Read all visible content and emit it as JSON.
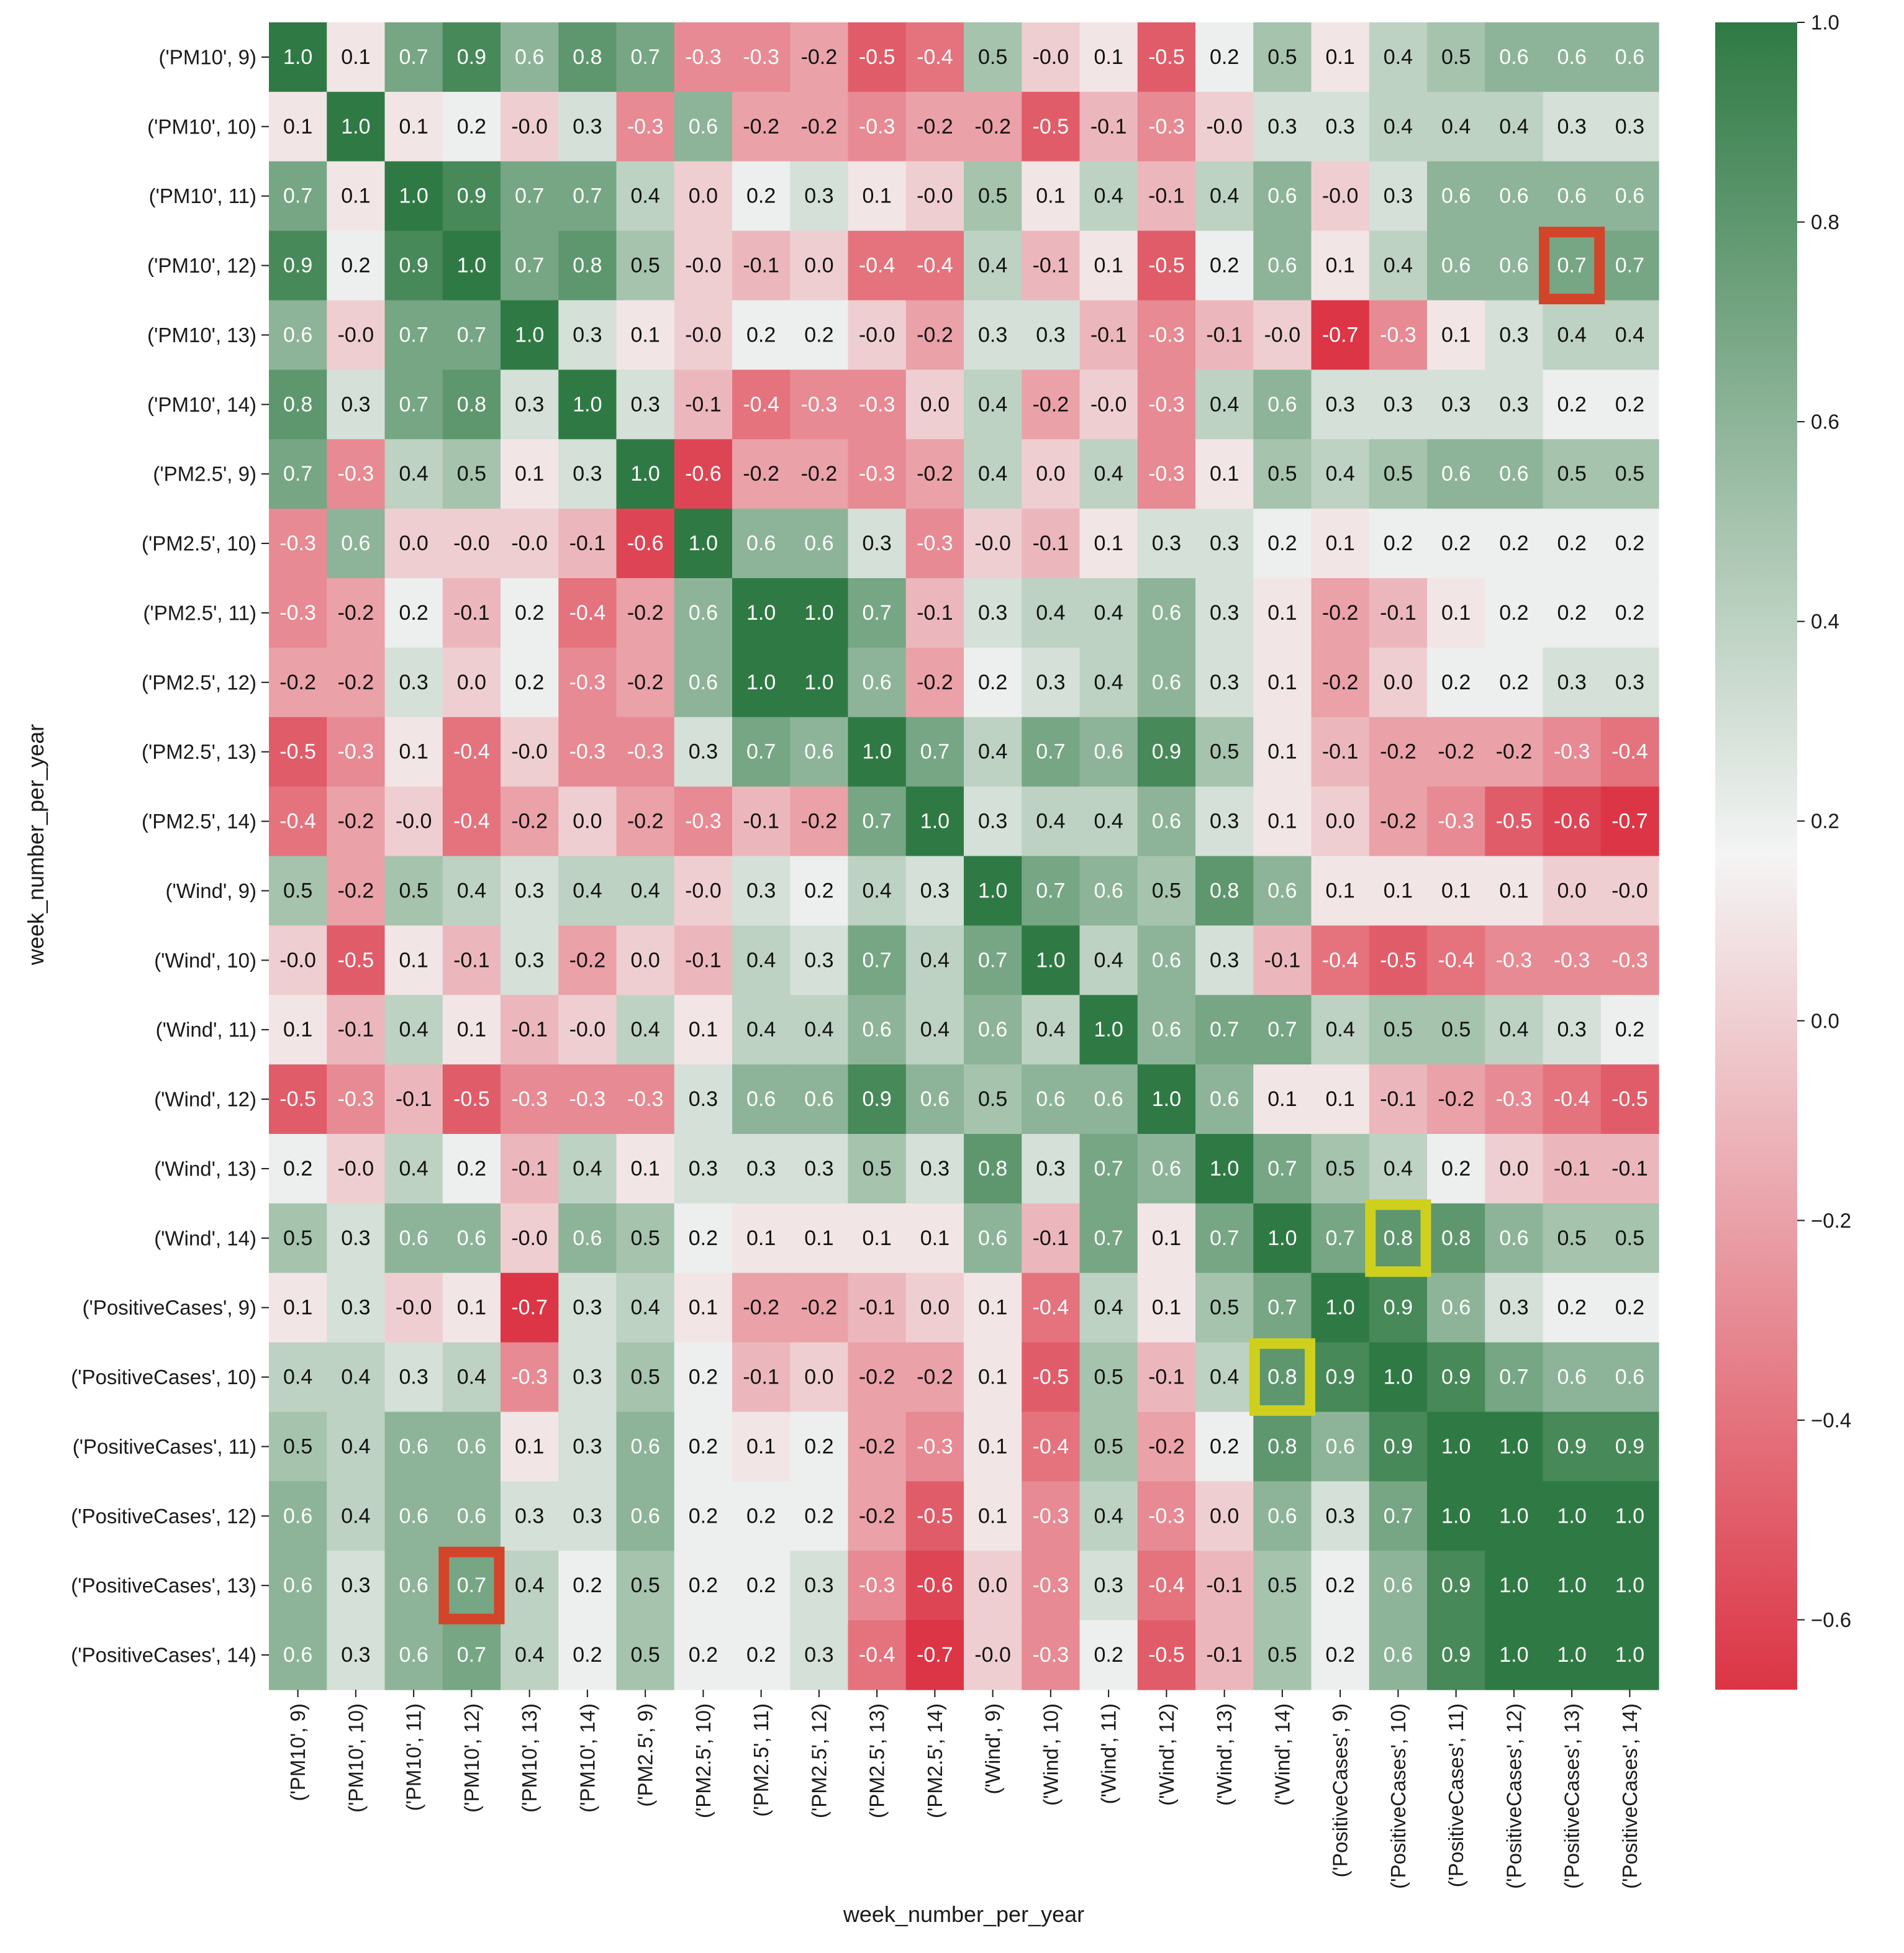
{
  "chart_data": {
    "type": "heatmap",
    "title": "",
    "xlabel": "week_number_per_year",
    "ylabel": "week_number_per_year",
    "labels": [
      "('PM10', 9)",
      "('PM10', 10)",
      "('PM10', 11)",
      "('PM10', 12)",
      "('PM10', 13)",
      "('PM10', 14)",
      "('PM2.5', 9)",
      "('PM2.5', 10)",
      "('PM2.5', 11)",
      "('PM2.5', 12)",
      "('PM2.5', 13)",
      "('PM2.5', 14)",
      "('Wind', 9)",
      "('Wind', 10)",
      "('Wind', 11)",
      "('Wind', 12)",
      "('Wind', 13)",
      "('Wind', 14)",
      "('PositiveCases', 9)",
      "('PositiveCases', 10)",
      "('PositiveCases', 11)",
      "('PositiveCases', 12)",
      "('PositiveCases', 13)",
      "('PositiveCases', 14)"
    ],
    "matrix": [
      [
        "1.0",
        "0.1",
        "0.7",
        "0.9",
        "0.6",
        "0.8",
        "0.7",
        "-0.3",
        "-0.3",
        "-0.2",
        "-0.5",
        "-0.4",
        "0.5",
        "-0.0",
        "0.1",
        "-0.5",
        "0.2",
        "0.5",
        "0.1",
        "0.4",
        "0.5",
        "0.6",
        "0.6",
        "0.6"
      ],
      [
        "0.1",
        "1.0",
        "0.1",
        "0.2",
        "-0.0",
        "0.3",
        "-0.3",
        "0.6",
        "-0.2",
        "-0.2",
        "-0.3",
        "-0.2",
        "-0.2",
        "-0.5",
        "-0.1",
        "-0.3",
        "-0.0",
        "0.3",
        "0.3",
        "0.4",
        "0.4",
        "0.4",
        "0.3",
        "0.3"
      ],
      [
        "0.7",
        "0.1",
        "1.0",
        "0.9",
        "0.7",
        "0.7",
        "0.4",
        "0.0",
        "0.2",
        "0.3",
        "0.1",
        "-0.0",
        "0.5",
        "0.1",
        "0.4",
        "-0.1",
        "0.4",
        "0.6",
        "-0.0",
        "0.3",
        "0.6",
        "0.6",
        "0.6",
        "0.6"
      ],
      [
        "0.9",
        "0.2",
        "0.9",
        "1.0",
        "0.7",
        "0.8",
        "0.5",
        "-0.0",
        "-0.1",
        "0.0",
        "-0.4",
        "-0.4",
        "0.4",
        "-0.1",
        "0.1",
        "-0.5",
        "0.2",
        "0.6",
        "0.1",
        "0.4",
        "0.6",
        "0.6",
        "0.7",
        "0.7"
      ],
      [
        "0.6",
        "-0.0",
        "0.7",
        "0.7",
        "1.0",
        "0.3",
        "0.1",
        "-0.0",
        "0.2",
        "0.2",
        "-0.0",
        "-0.2",
        "0.3",
        "0.3",
        "-0.1",
        "-0.3",
        "-0.1",
        "-0.0",
        "-0.7",
        "-0.3",
        "0.1",
        "0.3",
        "0.4",
        "0.4"
      ],
      [
        "0.8",
        "0.3",
        "0.7",
        "0.8",
        "0.3",
        "1.0",
        "0.3",
        "-0.1",
        "-0.4",
        "-0.3",
        "-0.3",
        "0.0",
        "0.4",
        "-0.2",
        "-0.0",
        "-0.3",
        "0.4",
        "0.6",
        "0.3",
        "0.3",
        "0.3",
        "0.3",
        "0.2",
        "0.2"
      ],
      [
        "0.7",
        "-0.3",
        "0.4",
        "0.5",
        "0.1",
        "0.3",
        "1.0",
        "-0.6",
        "-0.2",
        "-0.2",
        "-0.3",
        "-0.2",
        "0.4",
        "0.0",
        "0.4",
        "-0.3",
        "0.1",
        "0.5",
        "0.4",
        "0.5",
        "0.6",
        "0.6",
        "0.5",
        "0.5"
      ],
      [
        "-0.3",
        "0.6",
        "0.0",
        "-0.0",
        "-0.0",
        "-0.1",
        "-0.6",
        "1.0",
        "0.6",
        "0.6",
        "0.3",
        "-0.3",
        "-0.0",
        "-0.1",
        "0.1",
        "0.3",
        "0.3",
        "0.2",
        "0.1",
        "0.2",
        "0.2",
        "0.2",
        "0.2",
        "0.2"
      ],
      [
        "-0.3",
        "-0.2",
        "0.2",
        "-0.1",
        "0.2",
        "-0.4",
        "-0.2",
        "0.6",
        "1.0",
        "1.0",
        "0.7",
        "-0.1",
        "0.3",
        "0.4",
        "0.4",
        "0.6",
        "0.3",
        "0.1",
        "-0.2",
        "-0.1",
        "0.1",
        "0.2",
        "0.2",
        "0.2"
      ],
      [
        "-0.2",
        "-0.2",
        "0.3",
        "0.0",
        "0.2",
        "-0.3",
        "-0.2",
        "0.6",
        "1.0",
        "1.0",
        "0.6",
        "-0.2",
        "0.2",
        "0.3",
        "0.4",
        "0.6",
        "0.3",
        "0.1",
        "-0.2",
        "0.0",
        "0.2",
        "0.2",
        "0.3",
        "0.3"
      ],
      [
        "-0.5",
        "-0.3",
        "0.1",
        "-0.4",
        "-0.0",
        "-0.3",
        "-0.3",
        "0.3",
        "0.7",
        "0.6",
        "1.0",
        "0.7",
        "0.4",
        "0.7",
        "0.6",
        "0.9",
        "0.5",
        "0.1",
        "-0.1",
        "-0.2",
        "-0.2",
        "-0.2",
        "-0.3",
        "-0.4"
      ],
      [
        "-0.4",
        "-0.2",
        "-0.0",
        "-0.4",
        "-0.2",
        "0.0",
        "-0.2",
        "-0.3",
        "-0.1",
        "-0.2",
        "0.7",
        "1.0",
        "0.3",
        "0.4",
        "0.4",
        "0.6",
        "0.3",
        "0.1",
        "0.0",
        "-0.2",
        "-0.3",
        "-0.5",
        "-0.6",
        "-0.7"
      ],
      [
        "0.5",
        "-0.2",
        "0.5",
        "0.4",
        "0.3",
        "0.4",
        "0.4",
        "-0.0",
        "0.3",
        "0.2",
        "0.4",
        "0.3",
        "1.0",
        "0.7",
        "0.6",
        "0.5",
        "0.8",
        "0.6",
        "0.1",
        "0.1",
        "0.1",
        "0.1",
        "0.0",
        "-0.0"
      ],
      [
        "-0.0",
        "-0.5",
        "0.1",
        "-0.1",
        "0.3",
        "-0.2",
        "0.0",
        "-0.1",
        "0.4",
        "0.3",
        "0.7",
        "0.4",
        "0.7",
        "1.0",
        "0.4",
        "0.6",
        "0.3",
        "-0.1",
        "-0.4",
        "-0.5",
        "-0.4",
        "-0.3",
        "-0.3",
        "-0.3"
      ],
      [
        "0.1",
        "-0.1",
        "0.4",
        "0.1",
        "-0.1",
        "-0.0",
        "0.4",
        "0.1",
        "0.4",
        "0.4",
        "0.6",
        "0.4",
        "0.6",
        "0.4",
        "1.0",
        "0.6",
        "0.7",
        "0.7",
        "0.4",
        "0.5",
        "0.5",
        "0.4",
        "0.3",
        "0.2"
      ],
      [
        "-0.5",
        "-0.3",
        "-0.1",
        "-0.5",
        "-0.3",
        "-0.3",
        "-0.3",
        "0.3",
        "0.6",
        "0.6",
        "0.9",
        "0.6",
        "0.5",
        "0.6",
        "0.6",
        "1.0",
        "0.6",
        "0.1",
        "0.1",
        "-0.1",
        "-0.2",
        "-0.3",
        "-0.4",
        "-0.5"
      ],
      [
        "0.2",
        "-0.0",
        "0.4",
        "0.2",
        "-0.1",
        "0.4",
        "0.1",
        "0.3",
        "0.3",
        "0.3",
        "0.5",
        "0.3",
        "0.8",
        "0.3",
        "0.7",
        "0.6",
        "1.0",
        "0.7",
        "0.5",
        "0.4",
        "0.2",
        "0.0",
        "-0.1",
        "-0.1"
      ],
      [
        "0.5",
        "0.3",
        "0.6",
        "0.6",
        "-0.0",
        "0.6",
        "0.5",
        "0.2",
        "0.1",
        "0.1",
        "0.1",
        "0.1",
        "0.6",
        "-0.1",
        "0.7",
        "0.1",
        "0.7",
        "1.0",
        "0.7",
        "0.8",
        "0.8",
        "0.6",
        "0.5",
        "0.5"
      ],
      [
        "0.1",
        "0.3",
        "-0.0",
        "0.1",
        "-0.7",
        "0.3",
        "0.4",
        "0.1",
        "-0.2",
        "-0.2",
        "-0.1",
        "0.0",
        "0.1",
        "-0.4",
        "0.4",
        "0.1",
        "0.5",
        "0.7",
        "1.0",
        "0.9",
        "0.6",
        "0.3",
        "0.2",
        "0.2"
      ],
      [
        "0.4",
        "0.4",
        "0.3",
        "0.4",
        "-0.3",
        "0.3",
        "0.5",
        "0.2",
        "-0.1",
        "0.0",
        "-0.2",
        "-0.2",
        "0.1",
        "-0.5",
        "0.5",
        "-0.1",
        "0.4",
        "0.8",
        "0.9",
        "1.0",
        "0.9",
        "0.7",
        "0.6",
        "0.6"
      ],
      [
        "0.5",
        "0.4",
        "0.6",
        "0.6",
        "0.1",
        "0.3",
        "0.6",
        "0.2",
        "0.1",
        "0.2",
        "-0.2",
        "-0.3",
        "0.1",
        "-0.4",
        "0.5",
        "-0.2",
        "0.2",
        "0.8",
        "0.6",
        "0.9",
        "1.0",
        "1.0",
        "0.9",
        "0.9"
      ],
      [
        "0.6",
        "0.4",
        "0.6",
        "0.6",
        "0.3",
        "0.3",
        "0.6",
        "0.2",
        "0.2",
        "0.2",
        "-0.2",
        "-0.5",
        "0.1",
        "-0.3",
        "0.4",
        "-0.3",
        "0.0",
        "0.6",
        "0.3",
        "0.7",
        "1.0",
        "1.0",
        "1.0",
        "1.0"
      ],
      [
        "0.6",
        "0.3",
        "0.6",
        "0.7",
        "0.4",
        "0.2",
        "0.5",
        "0.2",
        "0.2",
        "0.3",
        "-0.3",
        "-0.6",
        "0.0",
        "-0.3",
        "0.3",
        "-0.4",
        "-0.1",
        "0.5",
        "0.2",
        "0.6",
        "0.9",
        "1.0",
        "1.0",
        "1.0"
      ],
      [
        "0.6",
        "0.3",
        "0.6",
        "0.7",
        "0.4",
        "0.2",
        "0.5",
        "0.2",
        "0.2",
        "0.3",
        "-0.4",
        "-0.7",
        "-0.0",
        "-0.3",
        "0.2",
        "-0.5",
        "-0.1",
        "0.5",
        "0.2",
        "0.6",
        "0.9",
        "1.0",
        "1.0",
        "1.0"
      ]
    ],
    "color_range": [
      -0.67,
      1.0
    ],
    "colorbar": {
      "ticks": [
        1.0,
        0.8,
        0.6,
        0.4,
        0.2,
        0.0,
        -0.2,
        -0.4,
        -0.6
      ],
      "tick_labels": [
        "1.0",
        "0.8",
        "0.6",
        "0.4",
        "0.2",
        "0.0",
        "−0.2",
        "−0.4",
        "−0.6"
      ]
    },
    "colors": {
      "low": "#dc3545",
      "mid": "#f4f4f4",
      "high": "#2f7a44"
    },
    "highlights": [
      {
        "row": 3,
        "col": 22,
        "color": "#d2452b"
      },
      {
        "row": 22,
        "col": 3,
        "color": "#d2452b"
      },
      {
        "row": 17,
        "col": 19,
        "color": "#cfcf1e"
      },
      {
        "row": 19,
        "col": 17,
        "color": "#cfcf1e"
      }
    ]
  }
}
